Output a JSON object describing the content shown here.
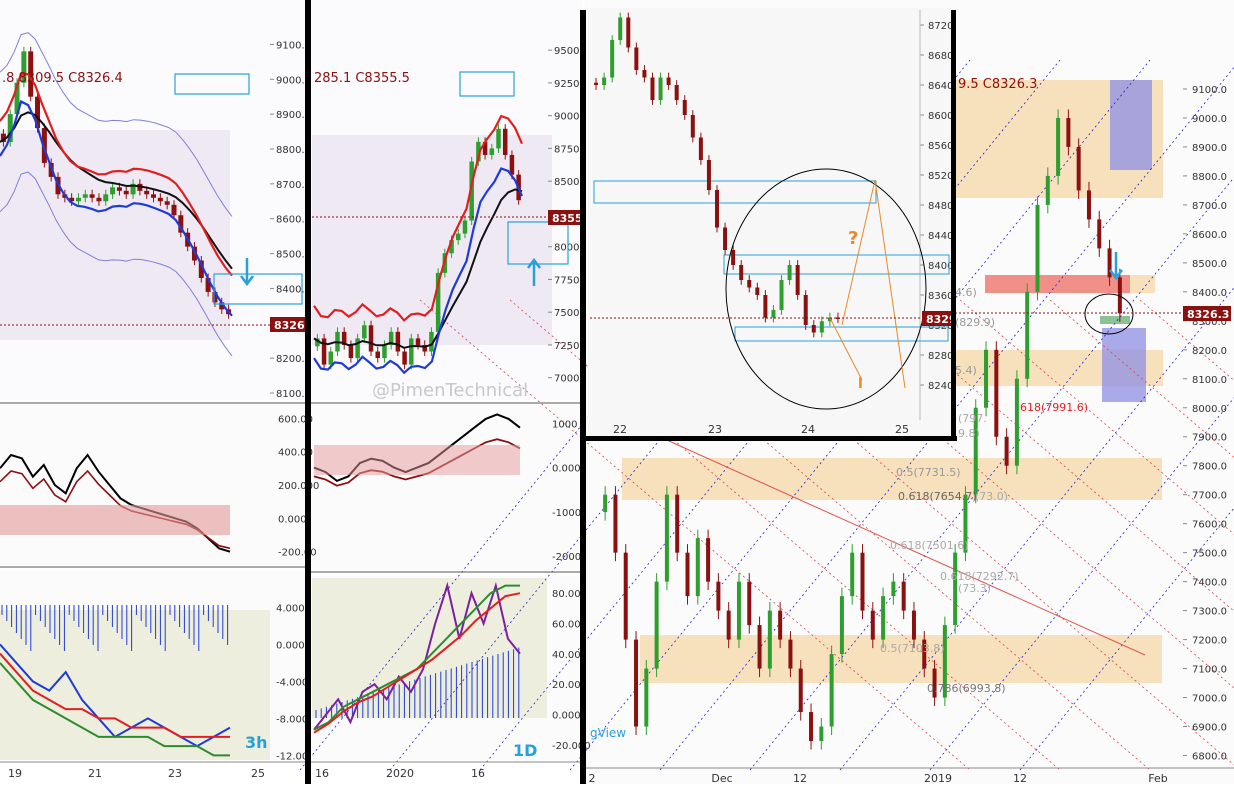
{
  "colors": {
    "up": "#2e9e2e",
    "down": "#8b1010",
    "price_line": "#8b1010",
    "accent_blue": "#2aa0d8",
    "ema_blue": "#1f3bd6",
    "ema_red": "#e02020",
    "orange": "#e98a2a",
    "zone_orange": "#f6d7a7",
    "zone_red": "#f08080",
    "zone_purple": "#8f8fe6",
    "divider": "#000000"
  },
  "icons": [
    "down-arrow-icon",
    "up-arrow-icon",
    "question-mark-icon"
  ],
  "panel_3h": {
    "ohlc_text": ".8  8309.5  C8326.4",
    "timeframe_label": "3h",
    "price_tag": "8326.",
    "chart_data": {
      "type": "candlestick",
      "x_labels": [
        "19",
        "21",
        "23",
        "25"
      ],
      "y_ticks": [
        8100,
        8200,
        8300,
        8400,
        8500,
        8600,
        8700,
        8800,
        8900,
        9000,
        9100
      ],
      "ylim": [
        8080,
        9170
      ],
      "last_price": 8326.4,
      "candles_close": [
        8820,
        8900,
        8990,
        9080,
        8950,
        8860,
        8760,
        8720,
        8670,
        8660,
        8650,
        8660,
        8670,
        8660,
        8650,
        8670,
        8690,
        8680,
        8670,
        8700,
        8680,
        8670,
        8660,
        8650,
        8640,
        8610,
        8560,
        8520,
        8480,
        8430,
        8390,
        8360,
        8340,
        8326
      ]
    },
    "macd_chart_data": {
      "type": "line",
      "y_ticks": [
        "600.00",
        "400.00",
        "200.000",
        "0.000",
        "-200.00"
      ],
      "ylim": [
        -250,
        650
      ]
    },
    "lower_chart_data": {
      "type": "line",
      "y_ticks": [
        "4.000",
        "0.000",
        "-4.000",
        "-8.000",
        "-12.00"
      ],
      "ylim": [
        -12.5,
        7.5
      ]
    }
  },
  "panel_1d": {
    "ohlc_text": "285.1  C8355.5",
    "timeframe_label": "1D",
    "price_tag": "8355",
    "watermark": "@PimenTechnical",
    "chart_data": {
      "type": "candlestick",
      "x_labels": [
        "16",
        "2020",
        "16"
      ],
      "y_ticks": [
        7000,
        7250,
        7500,
        7750,
        8000,
        8250,
        8500,
        8750,
        9000,
        9250,
        9500
      ],
      "ylim": [
        6830,
        9730
      ],
      "last_price": 8355.5,
      "candles_close": [
        7300,
        7100,
        7200,
        7350,
        7250,
        7150,
        7300,
        7400,
        7200,
        7150,
        7250,
        7350,
        7200,
        7100,
        7300,
        7250,
        7200,
        7350,
        7800,
        7950,
        8050,
        8100,
        8200,
        8650,
        8800,
        8700,
        8750,
        8900,
        8700,
        8550,
        8355
      ]
    },
    "macd_chart_data": {
      "type": "line",
      "y_ticks": [
        "1000",
        "0.000",
        "-1000",
        "-2000"
      ],
      "ylim": [
        -2200,
        1300
      ]
    },
    "lower_chart_data": {
      "type": "line",
      "y_ticks": [
        "80.00",
        "60.00",
        "40.00",
        "20.00",
        "0.000",
        "-20.000"
      ],
      "ylim": [
        -30,
        90
      ]
    }
  },
  "panel_zoom": {
    "price_tag": "8329",
    "chart_data": {
      "type": "candlestick",
      "x_labels": [
        "22",
        "23",
        "24",
        "25"
      ],
      "y_ticks": [
        8240,
        8280,
        8320,
        8360,
        8400,
        8440,
        8480,
        8520,
        8560,
        8600,
        8640,
        8680,
        8720
      ],
      "ylim": [
        8200,
        8740
      ],
      "last_price": 8329,
      "candles_close": [
        8640,
        8650,
        8700,
        8730,
        8690,
        8660,
        8650,
        8620,
        8650,
        8640,
        8620,
        8600,
        8570,
        8540,
        8500,
        8450,
        8420,
        8400,
        8380,
        8370,
        8360,
        8330,
        8340,
        8380,
        8400,
        8360,
        8320,
        8310,
        8325,
        8330,
        8329
      ]
    },
    "marker_question": "?"
  },
  "panel_big": {
    "ohlc_text": "9.5  C8326.3",
    "price_tag": "8326.3",
    "watermark": "gView",
    "fib_labels": [
      "0.5(7731.5)",
      "0.618(7654.7)",
      "618(7991.6)",
      "0.618(7501.6)",
      "0.618(7292.7)",
      "0.786(6993.8)",
      "0.5(7103.8)",
      "4.6)",
      "(829.9)",
      "5.4)",
      "(797.",
      "9.8)",
      "(73.3)",
      "(73.0)"
    ],
    "chart_data": {
      "type": "candlestick",
      "x_labels": [
        "2",
        "Dec",
        "12",
        "2019",
        "12",
        "Feb"
      ],
      "y_ticks": [
        6800,
        6900,
        7000,
        7100,
        7200,
        7300,
        7400,
        7500,
        7600,
        7700,
        7800,
        7900,
        8000,
        8100,
        8200,
        8300,
        8400,
        8500,
        8600,
        8700,
        8800,
        8900,
        9000,
        9100
      ],
      "ylim": [
        6750,
        9200
      ],
      "last_price": 8326.3,
      "candles_close": [
        7700,
        7500,
        7200,
        6900,
        7100,
        7400,
        7700,
        7500,
        7350,
        7550,
        7400,
        7300,
        7200,
        7400,
        7250,
        7100,
        7300,
        7200,
        7100,
        6950,
        6850,
        6900,
        7150,
        7350,
        7500,
        7300,
        7200,
        7350,
        7400,
        7300,
        7200,
        7100,
        7000,
        7250,
        7500,
        7700,
        8000,
        8200,
        7900,
        7800,
        8100,
        8400,
        8700,
        8800,
        9000,
        8900,
        8750,
        8650,
        8550,
        8450,
        8326
      ]
    }
  }
}
